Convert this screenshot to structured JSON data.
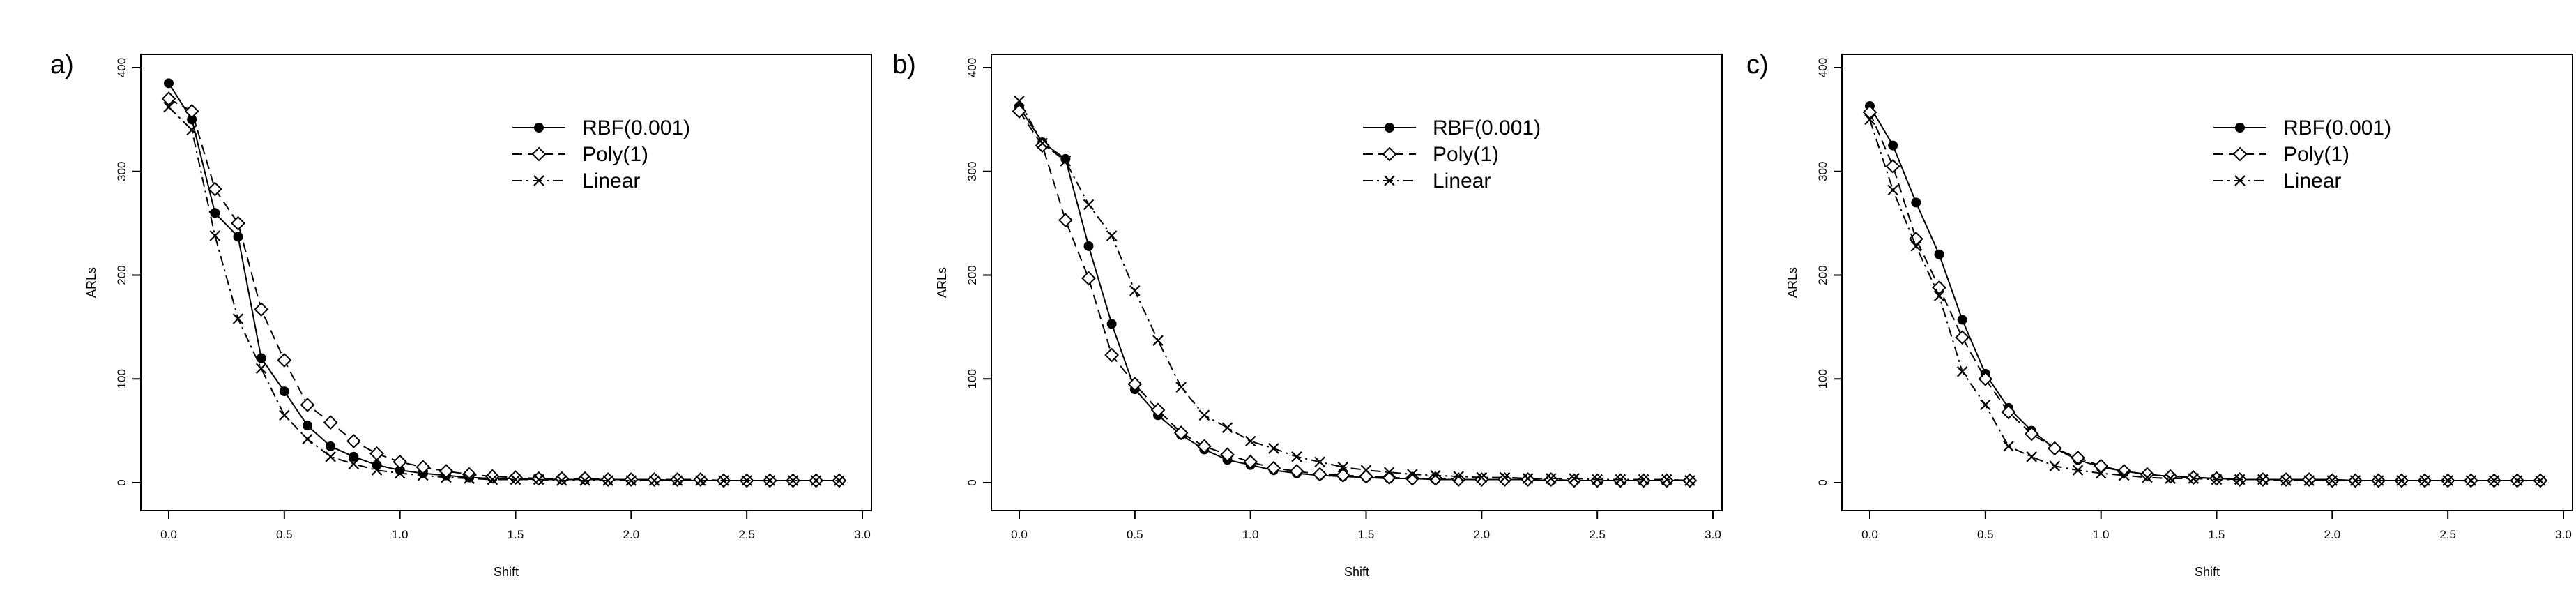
{
  "chart_data": [
    {
      "panel_label": "a)",
      "type": "line",
      "xlabel": "Shift",
      "ylabel": "ARLs",
      "xlim": [
        0,
        3.0
      ],
      "ylim": [
        0,
        400
      ],
      "xticks": [
        "0.0",
        "0.5",
        "1.0",
        "1.5",
        "2.0",
        "2.5",
        "3.0"
      ],
      "yticks": [
        "0",
        "100",
        "200",
        "300",
        "400"
      ],
      "legend_position": "top-right",
      "grid": false,
      "x": [
        0.0,
        0.1,
        0.2,
        0.3,
        0.4,
        0.5,
        0.6,
        0.7,
        0.8,
        0.9,
        1.0,
        1.1,
        1.2,
        1.3,
        1.4,
        1.5,
        1.6,
        1.7,
        1.8,
        1.9,
        2.0,
        2.1,
        2.2,
        2.3,
        2.4,
        2.5,
        2.6,
        2.7,
        2.8,
        2.9
      ],
      "series": [
        {
          "name": "RBF(0.001)",
          "marker": "dot",
          "line": "solid",
          "values": [
            385,
            350,
            260,
            237,
            120,
            88,
            55,
            35,
            25,
            17,
            12,
            9,
            7,
            5,
            4,
            4,
            3,
            3,
            3,
            3,
            3,
            3,
            2,
            2,
            2,
            2,
            2,
            2,
            2,
            2
          ]
        },
        {
          "name": "Poly(1)",
          "marker": "diamond",
          "line": "dashed",
          "values": [
            370,
            358,
            283,
            250,
            167,
            118,
            75,
            58,
            40,
            28,
            20,
            15,
            11,
            8,
            6,
            5,
            4,
            4,
            4,
            3,
            3,
            3,
            3,
            3,
            2,
            2,
            2,
            2,
            2,
            2
          ]
        },
        {
          "name": "Linear",
          "marker": "cross",
          "line": "dashdot",
          "values": [
            362,
            340,
            238,
            158,
            110,
            65,
            42,
            25,
            18,
            12,
            9,
            7,
            5,
            4,
            3,
            3,
            3,
            2,
            2,
            2,
            2,
            2,
            2,
            2,
            2,
            2,
            2,
            2,
            2,
            2
          ]
        }
      ]
    },
    {
      "panel_label": "b)",
      "type": "line",
      "xlabel": "Shift",
      "ylabel": "ARLs",
      "xlim": [
        0,
        3.0
      ],
      "ylim": [
        0,
        400
      ],
      "xticks": [
        "0.0",
        "0.5",
        "1.0",
        "1.5",
        "2.0",
        "2.5",
        "3.0"
      ],
      "yticks": [
        "0",
        "100",
        "200",
        "300",
        "400"
      ],
      "legend_position": "top-right",
      "grid": false,
      "x": [
        0.0,
        0.1,
        0.2,
        0.3,
        0.4,
        0.5,
        0.6,
        0.7,
        0.8,
        0.9,
        1.0,
        1.1,
        1.2,
        1.3,
        1.4,
        1.5,
        1.6,
        1.7,
        1.8,
        1.9,
        2.0,
        2.1,
        2.2,
        2.3,
        2.4,
        2.5,
        2.6,
        2.7,
        2.8,
        2.9
      ],
      "series": [
        {
          "name": "RBF(0.001)",
          "marker": "dot",
          "line": "solid",
          "values": [
            362,
            328,
            312,
            228,
            153,
            90,
            65,
            46,
            32,
            22,
            17,
            12,
            9,
            7,
            6,
            5,
            4,
            4,
            3,
            3,
            3,
            3,
            3,
            2,
            2,
            2,
            2,
            2,
            2,
            2
          ]
        },
        {
          "name": "Poly(1)",
          "marker": "diamond",
          "line": "dashed",
          "values": [
            358,
            325,
            253,
            197,
            123,
            95,
            70,
            48,
            35,
            27,
            20,
            14,
            11,
            8,
            7,
            6,
            5,
            4,
            4,
            3,
            3,
            3,
            3,
            3,
            2,
            2,
            2,
            2,
            2,
            2
          ]
        },
        {
          "name": "Linear",
          "marker": "cross",
          "line": "dashdot",
          "values": [
            368,
            327,
            310,
            268,
            238,
            185,
            137,
            92,
            65,
            53,
            40,
            33,
            25,
            20,
            15,
            12,
            10,
            8,
            7,
            6,
            5,
            5,
            4,
            4,
            4,
            3,
            3,
            3,
            3,
            2
          ]
        }
      ]
    },
    {
      "panel_label": "c)",
      "type": "line",
      "xlabel": "Shift",
      "ylabel": "ARLs",
      "xlim": [
        0,
        3.0
      ],
      "ylim": [
        0,
        400
      ],
      "xticks": [
        "0.0",
        "0.5",
        "1.0",
        "1.5",
        "2.0",
        "2.5",
        "3.0"
      ],
      "yticks": [
        "0",
        "100",
        "200",
        "300",
        "400"
      ],
      "legend_position": "top-right",
      "grid": false,
      "x": [
        0.0,
        0.1,
        0.2,
        0.3,
        0.4,
        0.5,
        0.6,
        0.7,
        0.8,
        0.9,
        1.0,
        1.1,
        1.2,
        1.3,
        1.4,
        1.5,
        1.6,
        1.7,
        1.8,
        1.9,
        2.0,
        2.1,
        2.2,
        2.3,
        2.4,
        2.5,
        2.6,
        2.7,
        2.8,
        2.9
      ],
      "series": [
        {
          "name": "RBF(0.001)",
          "marker": "dot",
          "line": "solid",
          "values": [
            363,
            325,
            270,
            220,
            157,
            105,
            72,
            50,
            33,
            22,
            15,
            11,
            8,
            6,
            5,
            4,
            3,
            3,
            3,
            3,
            3,
            2,
            2,
            2,
            2,
            2,
            2,
            2,
            2,
            2
          ]
        },
        {
          "name": "Poly(1)",
          "marker": "diamond",
          "line": "dashed",
          "values": [
            357,
            305,
            235,
            188,
            140,
            100,
            68,
            47,
            33,
            24,
            16,
            11,
            8,
            6,
            5,
            4,
            3,
            3,
            3,
            3,
            2,
            2,
            2,
            2,
            2,
            2,
            2,
            2,
            2,
            2
          ]
        },
        {
          "name": "Linear",
          "marker": "cross",
          "line": "dashdot",
          "values": [
            350,
            282,
            228,
            180,
            107,
            75,
            35,
            25,
            16,
            12,
            9,
            7,
            5,
            4,
            4,
            3,
            3,
            3,
            2,
            2,
            2,
            2,
            2,
            2,
            2,
            2,
            2,
            2,
            2,
            2
          ]
        }
      ]
    }
  ]
}
